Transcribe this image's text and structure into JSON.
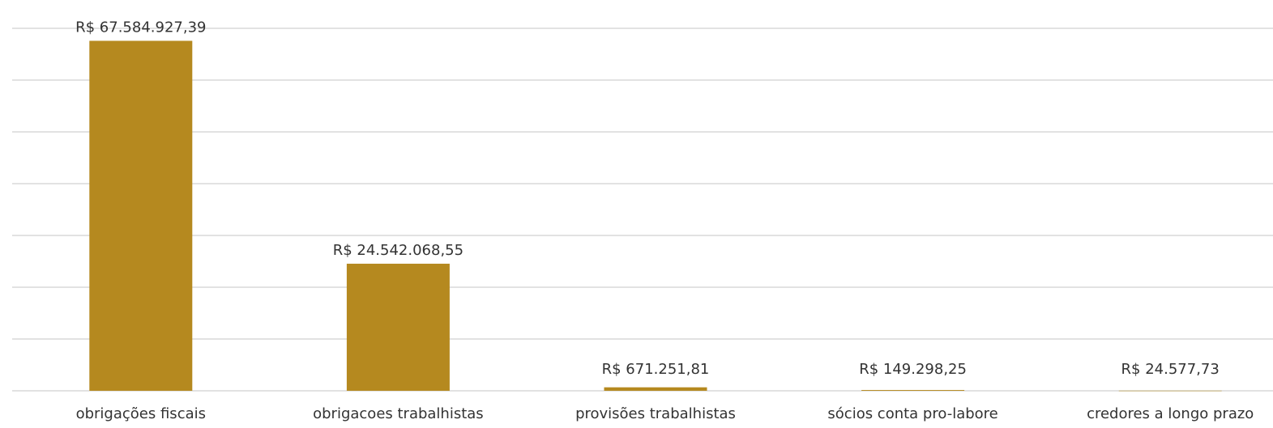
{
  "chart_data": {
    "type": "bar",
    "categories": [
      "obrigações fiscais",
      "obrigacoes trabalhistas",
      "provisões trabalhistas",
      "sócios conta pro-labore",
      "credores a longo prazo"
    ],
    "values": [
      67584927.39,
      24542068.55,
      671251.81,
      149298.25,
      24577.73
    ],
    "value_labels": [
      "R$ 67.584.927,39",
      "R$ 24.542.068,55",
      "R$ 671.251,81",
      "R$ 149.298,25",
      "R$ 24.577,73"
    ],
    "color": "#b5891f",
    "ylim": [
      0,
      70000000
    ],
    "yticks": [
      0,
      10000000,
      20000000,
      30000000,
      40000000,
      50000000,
      60000000,
      70000000
    ],
    "grid": true
  }
}
